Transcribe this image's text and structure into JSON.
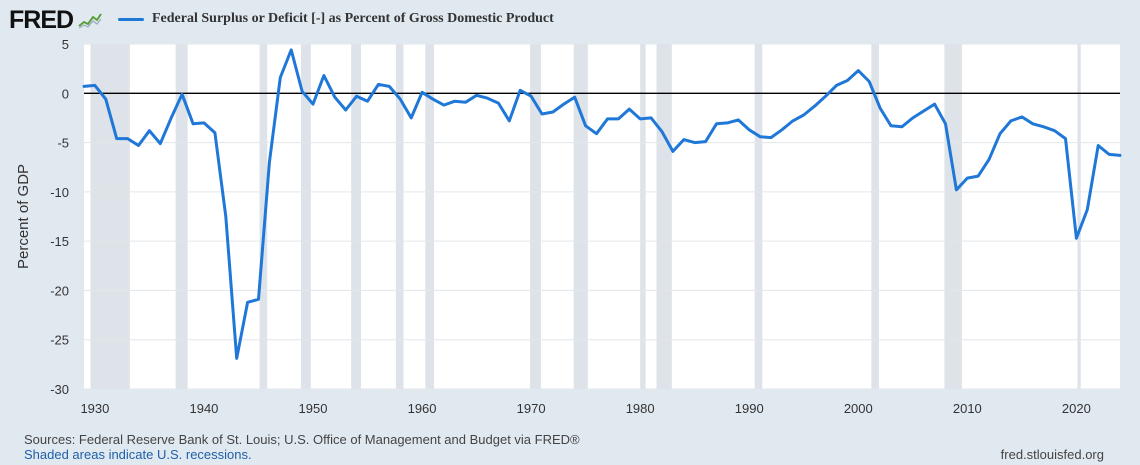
{
  "header": {
    "logo_text": "FRED",
    "logo_icon": "sparkline-icon"
  },
  "legend": {
    "label": "Federal Surplus or Deficit [-] as Percent of Gross Domestic Product",
    "color": "#1f77d8"
  },
  "footer": {
    "sources": "Sources: Federal Reserve Bank of St. Louis; U.S. Office of Management and Budget via FRED®",
    "shaded_note": "Shaded areas indicate U.S. recessions.",
    "url": "fred.stlouisfed.org"
  },
  "chart_data": {
    "type": "line",
    "title": "Federal Surplus or Deficit [-] as Percent of Gross Domestic Product",
    "xlabel": "",
    "ylabel": "Percent of GDP",
    "xlim": [
      1929,
      2024
    ],
    "ylim": [
      -30,
      5
    ],
    "x_ticks": [
      1930,
      1940,
      1950,
      1960,
      1970,
      1980,
      1990,
      2000,
      2010,
      2020
    ],
    "y_ticks": [
      5,
      0,
      -5,
      -10,
      -15,
      -20,
      -25,
      -30
    ],
    "zero_line": true,
    "grid": "horizontal",
    "recessions": [
      [
        1929.6,
        1933.2
      ],
      [
        1937.4,
        1938.5
      ],
      [
        1945.1,
        1945.8
      ],
      [
        1948.9,
        1949.8
      ],
      [
        1953.5,
        1954.4
      ],
      [
        1957.6,
        1958.3
      ],
      [
        1960.3,
        1961.1
      ],
      [
        1969.9,
        1970.9
      ],
      [
        1973.9,
        1975.2
      ],
      [
        1980.0,
        1980.5
      ],
      [
        1981.5,
        1982.9
      ],
      [
        1990.5,
        1991.2
      ],
      [
        2001.2,
        2001.9
      ],
      [
        2007.9,
        2009.5
      ],
      [
        2020.1,
        2020.4
      ]
    ],
    "series": [
      {
        "name": "Federal Surplus or Deficit [-] as Percent of Gross Domestic Product",
        "color": "#1f77d8",
        "x": [
          1929,
          1930,
          1931,
          1932,
          1933,
          1934,
          1935,
          1936,
          1937,
          1938,
          1939,
          1940,
          1941,
          1942,
          1943,
          1944,
          1945,
          1946,
          1947,
          1948,
          1949,
          1950,
          1951,
          1952,
          1953,
          1954,
          1955,
          1956,
          1957,
          1958,
          1959,
          1960,
          1961,
          1962,
          1963,
          1964,
          1965,
          1966,
          1967,
          1968,
          1969,
          1970,
          1971,
          1972,
          1973,
          1974,
          1975,
          1976,
          1977,
          1978,
          1979,
          1980,
          1981,
          1982,
          1983,
          1984,
          1985,
          1986,
          1987,
          1988,
          1989,
          1990,
          1991,
          1992,
          1993,
          1994,
          1995,
          1996,
          1997,
          1998,
          1999,
          2000,
          2001,
          2002,
          2003,
          2004,
          2005,
          2006,
          2007,
          2008,
          2009,
          2010,
          2011,
          2012,
          2013,
          2014,
          2015,
          2016,
          2017,
          2018,
          2019,
          2020,
          2021,
          2022,
          2023,
          2024
        ],
        "values": [
          0.7,
          0.8,
          -0.6,
          -4.6,
          -4.6,
          -5.3,
          -3.8,
          -5.1,
          -2.5,
          -0.1,
          -3.1,
          -3.0,
          -4.0,
          -12.5,
          -26.9,
          -21.2,
          -20.9,
          -7.0,
          1.6,
          4.4,
          0.2,
          -1.1,
          1.8,
          -0.4,
          -1.7,
          -0.3,
          -0.8,
          0.9,
          0.7,
          -0.6,
          -2.5,
          0.1,
          -0.6,
          -1.2,
          -0.8,
          -0.9,
          -0.2,
          -0.5,
          -1.0,
          -2.8,
          0.3,
          -0.3,
          -2.1,
          -1.9,
          -1.1,
          -0.4,
          -3.3,
          -4.1,
          -2.6,
          -2.6,
          -1.6,
          -2.6,
          -2.5,
          -3.9,
          -5.9,
          -4.7,
          -5.0,
          -4.9,
          -3.1,
          -3.0,
          -2.7,
          -3.7,
          -4.4,
          -4.5,
          -3.7,
          -2.8,
          -2.2,
          -1.3,
          -0.3,
          0.8,
          1.3,
          2.3,
          1.2,
          -1.5,
          -3.3,
          -3.4,
          -2.5,
          -1.8,
          -1.1,
          -3.1,
          -9.8,
          -8.6,
          -8.4,
          -6.7,
          -4.1,
          -2.8,
          -2.4,
          -3.1,
          -3.4,
          -3.8,
          -4.6,
          -14.7,
          -11.8,
          -5.3,
          -6.2,
          -6.3
        ]
      }
    ]
  }
}
